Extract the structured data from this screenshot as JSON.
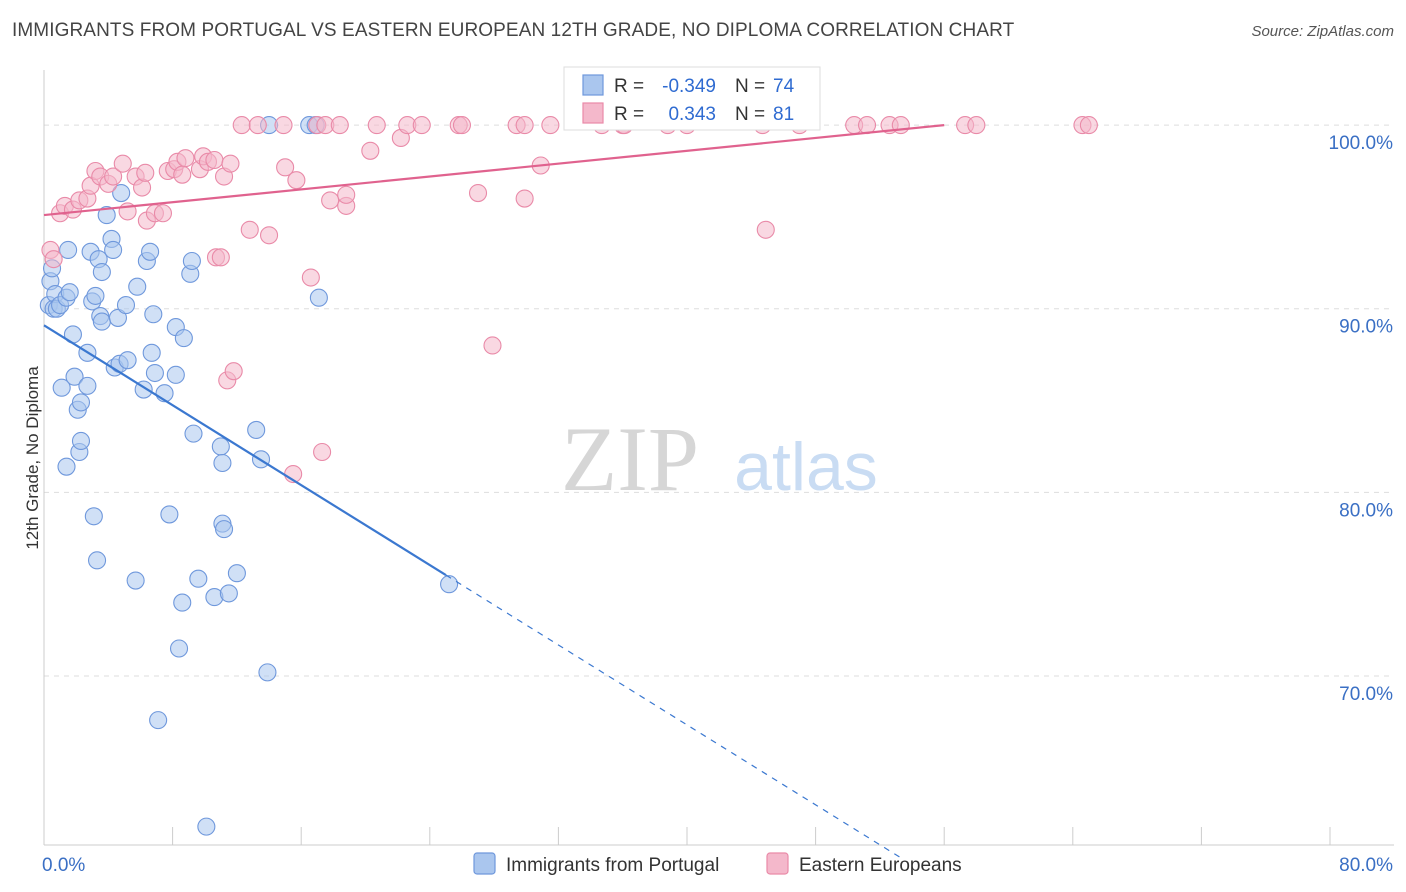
{
  "title": "IMMIGRANTS FROM PORTUGAL VS EASTERN EUROPEAN 12TH GRADE, NO DIPLOMA CORRELATION CHART",
  "source": "Source: ZipAtlas.com",
  "watermark": {
    "zip": "ZIP",
    "atlas": "atlas"
  },
  "colors": {
    "blue_fill": "#aac6ee",
    "blue_stroke": "#6f98dc",
    "blue_line": "#3b78d0",
    "pink_fill": "#f4b8cb",
    "pink_stroke": "#e98aa8",
    "pink_line": "#e0628e",
    "axis_label": "#3a6fc4",
    "grid": "#dddddd"
  },
  "stats_box": {
    "rows": [
      {
        "r_label": "R =",
        "r_value": "-0.349",
        "n_label": "N =",
        "n_value": "74"
      },
      {
        "r_label": "R =",
        "r_value": "0.343",
        "n_label": "N =",
        "n_value": "81"
      }
    ]
  },
  "chart_data": {
    "type": "scatter",
    "xlabel": "",
    "ylabel": "12th Grade, No Diploma",
    "xlim": [
      0,
      80
    ],
    "ylim": [
      60.8,
      103
    ],
    "x_tick_labels": [
      {
        "value": 0,
        "label": "0.0%"
      },
      {
        "value": 80,
        "label": "80.0%"
      }
    ],
    "y_tick_labels": [
      {
        "value": 100,
        "label": "100.0%"
      },
      {
        "value": 90,
        "label": "90.0%"
      },
      {
        "value": 80,
        "label": "80.0%"
      },
      {
        "value": 70,
        "label": "70.0%"
      }
    ],
    "x_minor_ticks": [
      0,
      8,
      16,
      24,
      32,
      40,
      48,
      56,
      64,
      72,
      80
    ],
    "grid": true,
    "legend_position": "bottom-center",
    "series": [
      {
        "name": "Immigrants from Portugal",
        "color": "blue",
        "trend": {
          "x0": 0,
          "y0": 89.1,
          "x1": 25,
          "y1": 75.5,
          "dashed_to_x": 53.5
        },
        "points": [
          [
            0.3,
            90.2
          ],
          [
            0.4,
            91.5
          ],
          [
            0.5,
            92.2
          ],
          [
            0.6,
            90.0
          ],
          [
            0.7,
            90.8
          ],
          [
            0.8,
            90.0
          ],
          [
            1.0,
            90.2
          ],
          [
            1.4,
            90.6
          ],
          [
            1.5,
            93.2
          ],
          [
            1.6,
            90.9
          ],
          [
            1.8,
            88.6
          ],
          [
            1.1,
            85.7
          ],
          [
            1.9,
            86.3
          ],
          [
            2.1,
            84.5
          ],
          [
            2.2,
            82.2
          ],
          [
            2.3,
            82.8
          ],
          [
            2.3,
            84.9
          ],
          [
            1.4,
            81.4
          ],
          [
            2.7,
            87.6
          ],
          [
            2.7,
            85.8
          ],
          [
            2.9,
            93.1
          ],
          [
            3.0,
            90.4
          ],
          [
            3.2,
            90.7
          ],
          [
            3.4,
            92.7
          ],
          [
            3.6,
            92.0
          ],
          [
            3.5,
            89.6
          ],
          [
            3.6,
            89.3
          ],
          [
            3.9,
            95.1
          ],
          [
            4.2,
            93.8
          ],
          [
            4.3,
            93.2
          ],
          [
            4.6,
            89.5
          ],
          [
            4.4,
            86.8
          ],
          [
            4.7,
            87.0
          ],
          [
            4.8,
            96.3
          ],
          [
            5.1,
            90.2
          ],
          [
            5.2,
            87.2
          ],
          [
            5.8,
            91.2
          ],
          [
            6.2,
            85.6
          ],
          [
            6.4,
            92.6
          ],
          [
            6.6,
            93.1
          ],
          [
            6.7,
            87.6
          ],
          [
            6.8,
            89.7
          ],
          [
            6.9,
            86.5
          ],
          [
            7.5,
            85.4
          ],
          [
            8.2,
            89.0
          ],
          [
            8.2,
            86.4
          ],
          [
            8.7,
            88.4
          ],
          [
            9.1,
            91.9
          ],
          [
            9.2,
            92.6
          ],
          [
            9.3,
            83.2
          ],
          [
            3.1,
            78.7
          ],
          [
            3.3,
            76.3
          ],
          [
            5.7,
            75.2
          ],
          [
            7.8,
            78.8
          ],
          [
            8.6,
            74.0
          ],
          [
            8.4,
            71.5
          ],
          [
            7.1,
            67.6
          ],
          [
            9.6,
            75.3
          ],
          [
            10.6,
            74.3
          ],
          [
            11.1,
            78.3
          ],
          [
            11.5,
            74.5
          ],
          [
            11.2,
            78.0
          ],
          [
            11.0,
            82.5
          ],
          [
            11.1,
            81.6
          ],
          [
            12.0,
            75.6
          ],
          [
            13.2,
            83.4
          ],
          [
            13.5,
            81.8
          ],
          [
            13.9,
            70.2
          ],
          [
            14.0,
            100.0
          ],
          [
            16.5,
            100.0
          ],
          [
            16.9,
            100.0
          ],
          [
            17.1,
            90.6
          ],
          [
            10.1,
            61.8
          ],
          [
            25.2,
            75.0
          ]
        ]
      },
      {
        "name": "Eastern Europeans",
        "color": "pink",
        "trend": {
          "x0": 0,
          "y0": 95.1,
          "x1": 56,
          "y1": 100.0
        },
        "points": [
          [
            0.4,
            93.2
          ],
          [
            0.6,
            92.7
          ],
          [
            1.0,
            95.2
          ],
          [
            1.3,
            95.6
          ],
          [
            1.8,
            95.4
          ],
          [
            2.2,
            95.9
          ],
          [
            2.7,
            96.0
          ],
          [
            2.9,
            96.7
          ],
          [
            3.2,
            97.5
          ],
          [
            3.5,
            97.2
          ],
          [
            4.0,
            96.8
          ],
          [
            4.3,
            97.2
          ],
          [
            4.9,
            97.9
          ],
          [
            5.2,
            95.3
          ],
          [
            5.7,
            97.2
          ],
          [
            6.1,
            96.6
          ],
          [
            6.3,
            97.4
          ],
          [
            6.4,
            94.8
          ],
          [
            6.9,
            95.2
          ],
          [
            7.4,
            95.2
          ],
          [
            7.7,
            97.5
          ],
          [
            8.1,
            97.6
          ],
          [
            8.3,
            98.0
          ],
          [
            8.8,
            98.2
          ],
          [
            8.6,
            97.3
          ],
          [
            9.7,
            97.6
          ],
          [
            9.9,
            98.3
          ],
          [
            10.2,
            98.0
          ],
          [
            10.6,
            98.1
          ],
          [
            11.2,
            97.2
          ],
          [
            11.6,
            97.9
          ],
          [
            10.7,
            92.8
          ],
          [
            11.0,
            92.8
          ],
          [
            11.4,
            86.1
          ],
          [
            11.8,
            86.6
          ],
          [
            12.3,
            100.0
          ],
          [
            12.8,
            94.3
          ],
          [
            13.3,
            100.0
          ],
          [
            14.0,
            94.0
          ],
          [
            14.9,
            100.0
          ],
          [
            15.0,
            97.7
          ],
          [
            15.5,
            81.0
          ],
          [
            15.7,
            97.0
          ],
          [
            16.6,
            91.7
          ],
          [
            17.3,
            82.2
          ],
          [
            17.0,
            100.0
          ],
          [
            17.5,
            100.0
          ],
          [
            17.8,
            95.9
          ],
          [
            18.4,
            100.0
          ],
          [
            18.8,
            95.6
          ],
          [
            18.8,
            96.2
          ],
          [
            20.3,
            98.6
          ],
          [
            20.7,
            100.0
          ],
          [
            22.2,
            99.3
          ],
          [
            22.6,
            100.0
          ],
          [
            23.5,
            100.0
          ],
          [
            25.8,
            100.0
          ],
          [
            26.0,
            100.0
          ],
          [
            27.0,
            96.3
          ],
          [
            27.9,
            88.0
          ],
          [
            29.4,
            100.0
          ],
          [
            29.9,
            100.0
          ],
          [
            29.9,
            96.0
          ],
          [
            30.9,
            97.8
          ],
          [
            31.5,
            100.0
          ],
          [
            34.7,
            100.0
          ],
          [
            36.0,
            100.0
          ],
          [
            36.1,
            100.0
          ],
          [
            38.8,
            100.0
          ],
          [
            40.0,
            100.0
          ],
          [
            44.7,
            100.0
          ],
          [
            44.9,
            94.3
          ],
          [
            47.0,
            100.0
          ],
          [
            50.4,
            100.0
          ],
          [
            51.2,
            100.0
          ],
          [
            52.6,
            100.0
          ],
          [
            53.3,
            100.0
          ],
          [
            57.3,
            100.0
          ],
          [
            58.0,
            100.0
          ],
          [
            64.6,
            100.0
          ],
          [
            65.0,
            100.0
          ]
        ]
      }
    ]
  }
}
